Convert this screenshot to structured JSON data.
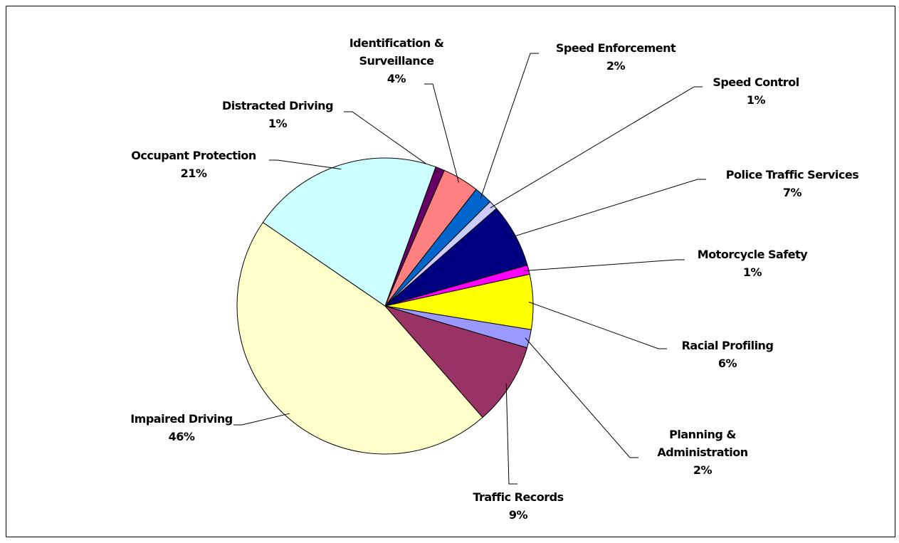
{
  "chart_data": {
    "type": "pie",
    "categories": [
      "Distracted Driving",
      "Identification & Surveillance",
      "Speed Enforcement",
      "Speed Control",
      "Police Traffic Services",
      "Motorcycle Safety",
      "Racial Profiling",
      "Planning & Administration",
      "Traffic Records",
      "Impaired Driving",
      "Occupant  Protection"
    ],
    "values": [
      1,
      4,
      2,
      1,
      7,
      1,
      6,
      2,
      9,
      46,
      21
    ],
    "value_labels": [
      "1%",
      "4%",
      "2%",
      "1%",
      "7%",
      "1%",
      "6%",
      "2%",
      "9%",
      "46%",
      "21%"
    ],
    "colors": [
      "#660066",
      "#ff8080",
      "#0066cc",
      "#ccccff",
      "#000080",
      "#ff00ff",
      "#ffff00",
      "#9999ff",
      "#993366",
      "#ffffcc",
      "#ccffff"
    ]
  }
}
